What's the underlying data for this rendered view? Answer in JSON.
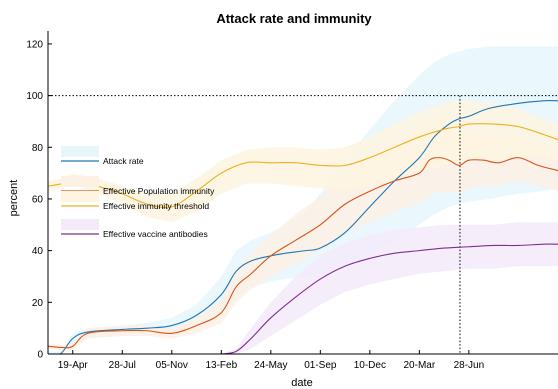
{
  "chart_data": {
    "type": "line",
    "title": "Attack rate and immunity",
    "xlabel": "date",
    "ylabel": "percent",
    "x_ticks": [
      "19-Apr",
      "28-Jul",
      "05-Nov",
      "13-Feb",
      "24-May",
      "01-Sep",
      "10-Dec",
      "20-Mar",
      "28-Jun"
    ],
    "ylim": [
      0,
      125
    ],
    "y_ticks": [
      0,
      20,
      40,
      60,
      80,
      100,
      120
    ],
    "reference_lines": {
      "horizontal_y": 100,
      "vertical_x": 7.82
    },
    "legend_placement": "left-middle",
    "series": [
      {
        "name": "Attack rate",
        "color": "#1f77b4",
        "band_color": "#e6f6fb",
        "x": [
          -0.5,
          -0.25,
          0,
          0.3,
          1,
          1.5,
          2,
          2.5,
          3,
          3.3,
          3.6,
          4,
          4.3,
          4.7,
          5,
          5.5,
          6,
          6.5,
          7,
          7.3,
          7.6,
          7.8,
          8,
          8.4,
          9,
          9.5,
          9.8
        ],
        "values": [
          0,
          0,
          6,
          8.5,
          9.5,
          10,
          11,
          15,
          23,
          32,
          36,
          38,
          39,
          40,
          41,
          47,
          57,
          67,
          76,
          84,
          89,
          91,
          92,
          95,
          97,
          98,
          98
        ],
        "band_upper": [
          1,
          1,
          8,
          10,
          11,
          12,
          14,
          19,
          30,
          40,
          44,
          47,
          50,
          55,
          62,
          75,
          87,
          98,
          108,
          113,
          116,
          117,
          118,
          119,
          119,
          119,
          119
        ],
        "band_lower": [
          0,
          0,
          4,
          6,
          7,
          7,
          8,
          10,
          15,
          22,
          26,
          28,
          29,
          30,
          30,
          33,
          38,
          44,
          50,
          54,
          57,
          58,
          59,
          60,
          62,
          63,
          64
        ]
      },
      {
        "name": "Effective Population immunity",
        "color": "#d95319",
        "band_color": "#fdf1e4",
        "x": [
          -0.5,
          -0.2,
          0,
          0.3,
          1,
          1.5,
          2,
          2.5,
          3,
          3.3,
          3.6,
          4,
          4.5,
          5,
          5.5,
          6,
          6.5,
          7,
          7.2,
          7.4,
          7.6,
          7.8,
          8,
          8.3,
          8.6,
          9,
          9.4,
          9.8
        ],
        "values": [
          3,
          2.5,
          3,
          8,
          9,
          9,
          8,
          11,
          16,
          26,
          31,
          38,
          44,
          50,
          58,
          63,
          67,
          70,
          75,
          76,
          75,
          73,
          75,
          75,
          74,
          76,
          73,
          71
        ],
        "band_upper": [
          4,
          3.5,
          4,
          10,
          11,
          11,
          10,
          14,
          21,
          33,
          39,
          46,
          54,
          61,
          69,
          76,
          82,
          88,
          90,
          90,
          88,
          86,
          86,
          85,
          84,
          84,
          81,
          79
        ],
        "band_lower": [
          2,
          1.5,
          2,
          6,
          7,
          7,
          6,
          8,
          12,
          20,
          25,
          30,
          35,
          40,
          47,
          51,
          55,
          58,
          61,
          63,
          63,
          62,
          64,
          65,
          65,
          67,
          65,
          63
        ]
      },
      {
        "name": "Effective immunity threshold",
        "color": "#edb120",
        "band_color": "#fdf5df",
        "x": [
          -0.5,
          -0.2,
          0,
          0.5,
          1,
          1.5,
          2,
          2.5,
          3,
          3.5,
          4,
          4.5,
          5,
          5.5,
          6,
          6.5,
          7,
          7.5,
          7.8,
          8,
          8.5,
          9,
          9.5,
          9.8
        ],
        "values": [
          65,
          66,
          68,
          65,
          62,
          58,
          57,
          63,
          70,
          74,
          74,
          74,
          73,
          73,
          76,
          80,
          84,
          87,
          88,
          89,
          89,
          88,
          85,
          83
        ],
        "band_upper": [
          67,
          68,
          70,
          68,
          65,
          62,
          62,
          68,
          75,
          79,
          80,
          80,
          79,
          80,
          84,
          89,
          94,
          97,
          98,
          98,
          97,
          95,
          91,
          89
        ],
        "band_lower": [
          63,
          64,
          66,
          62,
          58,
          53,
          51,
          55,
          62,
          66,
          66,
          65,
          64,
          63,
          65,
          68,
          71,
          73,
          74,
          75,
          75,
          76,
          76,
          75
        ]
      },
      {
        "name": "Effective vaccine antibodies",
        "color": "#7e2f8e",
        "band_color": "#f5eafa",
        "x": [
          -0.5,
          0,
          1,
          2,
          2.8,
          3,
          3.3,
          3.6,
          4,
          4.5,
          5,
          5.5,
          6,
          6.5,
          7,
          7.5,
          8,
          8.5,
          9,
          9.5,
          9.8
        ],
        "values": [
          0,
          0,
          0,
          0,
          0,
          0,
          1,
          6,
          14,
          22,
          29,
          34,
          37,
          39,
          40,
          41,
          41.5,
          42,
          42,
          42.5,
          42.5
        ],
        "band_upper": [
          0,
          0,
          0,
          0,
          0,
          0,
          2,
          10,
          20,
          30,
          38,
          43,
          46,
          48,
          49,
          50,
          50,
          50,
          51,
          51,
          51
        ],
        "band_lower": [
          0,
          0,
          0,
          0,
          0,
          0,
          0,
          2,
          7,
          13,
          19,
          24,
          27,
          29,
          31,
          32,
          33,
          33,
          34,
          34,
          34
        ]
      }
    ]
  }
}
